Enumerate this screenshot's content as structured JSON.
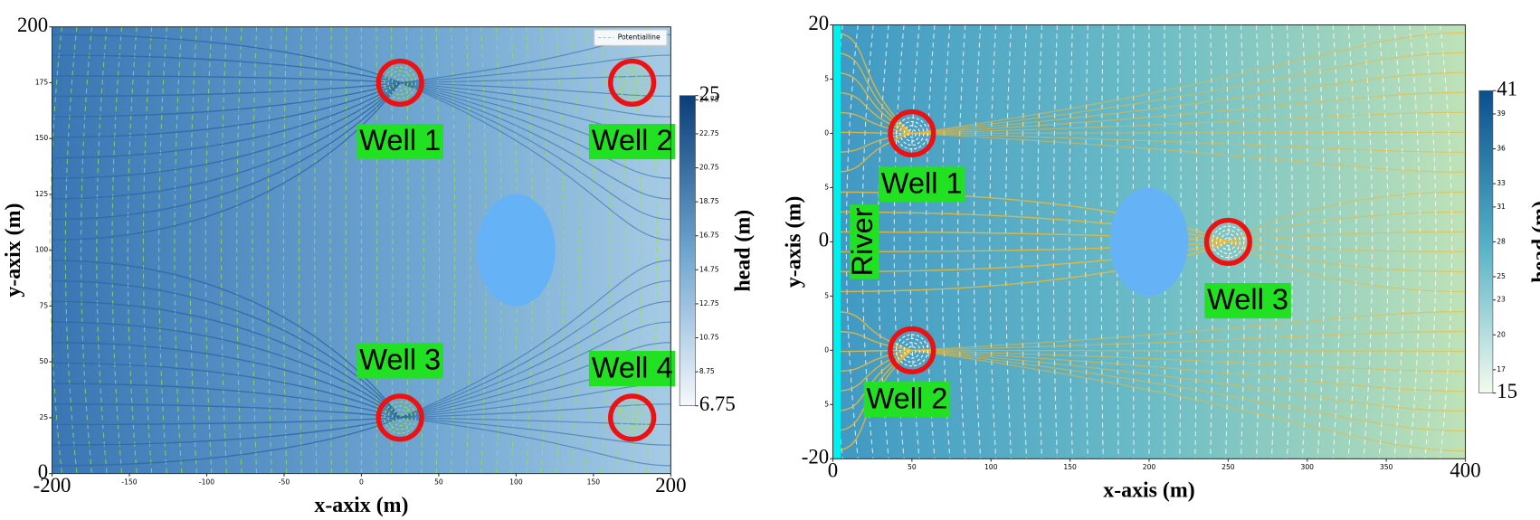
{
  "chart_data": [
    {
      "type": "contour",
      "xlabel": "x-axix (m)",
      "ylabel": "y-axix (m)",
      "xlim": [
        -200,
        200
      ],
      "ylim": [
        0,
        200
      ],
      "xticks": [
        -200,
        -150,
        -100,
        -50,
        0,
        50,
        100,
        150,
        200
      ],
      "yticks": [
        0,
        25,
        50,
        75,
        100,
        125,
        150,
        175,
        200
      ],
      "colorbar": {
        "label": "head (m)",
        "lim": [
          6.75,
          25
        ],
        "ticks": [
          6.75,
          8.75,
          10.75,
          12.75,
          14.75,
          16.75,
          18.75,
          20.75,
          22.75,
          24.75,
          25
        ]
      },
      "legend": "Potentialline",
      "wells": [
        {
          "label": "Well 1",
          "x": 25,
          "y": 175
        },
        {
          "label": "Well 2",
          "x": 175,
          "y": 175
        },
        {
          "label": "Well 3",
          "x": 25,
          "y": 25
        },
        {
          "label": "Well 4",
          "x": 175,
          "y": 25
        }
      ],
      "obstacle": {
        "x": 100,
        "y": 100
      }
    },
    {
      "type": "contour",
      "xlabel": "x-axis (m)",
      "ylabel": "y-axis (m)",
      "xlim": [
        0,
        400
      ],
      "ylim": [
        -20,
        20
      ],
      "xticks": [
        0,
        50,
        100,
        150,
        200,
        250,
        300,
        350,
        400
      ],
      "yticks": [
        -20,
        {
          "value": -15,
          "label": "5"
        },
        {
          "value": -10,
          "label": "0"
        },
        {
          "value": -5,
          "label": "5"
        },
        0,
        {
          "value": 5,
          "label": "5"
        },
        {
          "value": 10,
          "label": "0"
        },
        {
          "value": 15,
          "label": "5"
        },
        20
      ],
      "colorbar": {
        "label": "head (m)",
        "lim": [
          15,
          41
        ],
        "ticks": [
          15,
          17,
          20,
          23,
          25,
          28,
          31,
          33,
          36,
          39,
          41
        ]
      },
      "river_label": "River",
      "wells": [
        {
          "label": "Well 1",
          "x": 50,
          "y": 10
        },
        {
          "label": "Well 2",
          "x": 50,
          "y": -10
        },
        {
          "label": "Well 3",
          "x": 250,
          "y": 0
        }
      ],
      "obstacle": {
        "x": 200,
        "y": 0
      }
    }
  ]
}
